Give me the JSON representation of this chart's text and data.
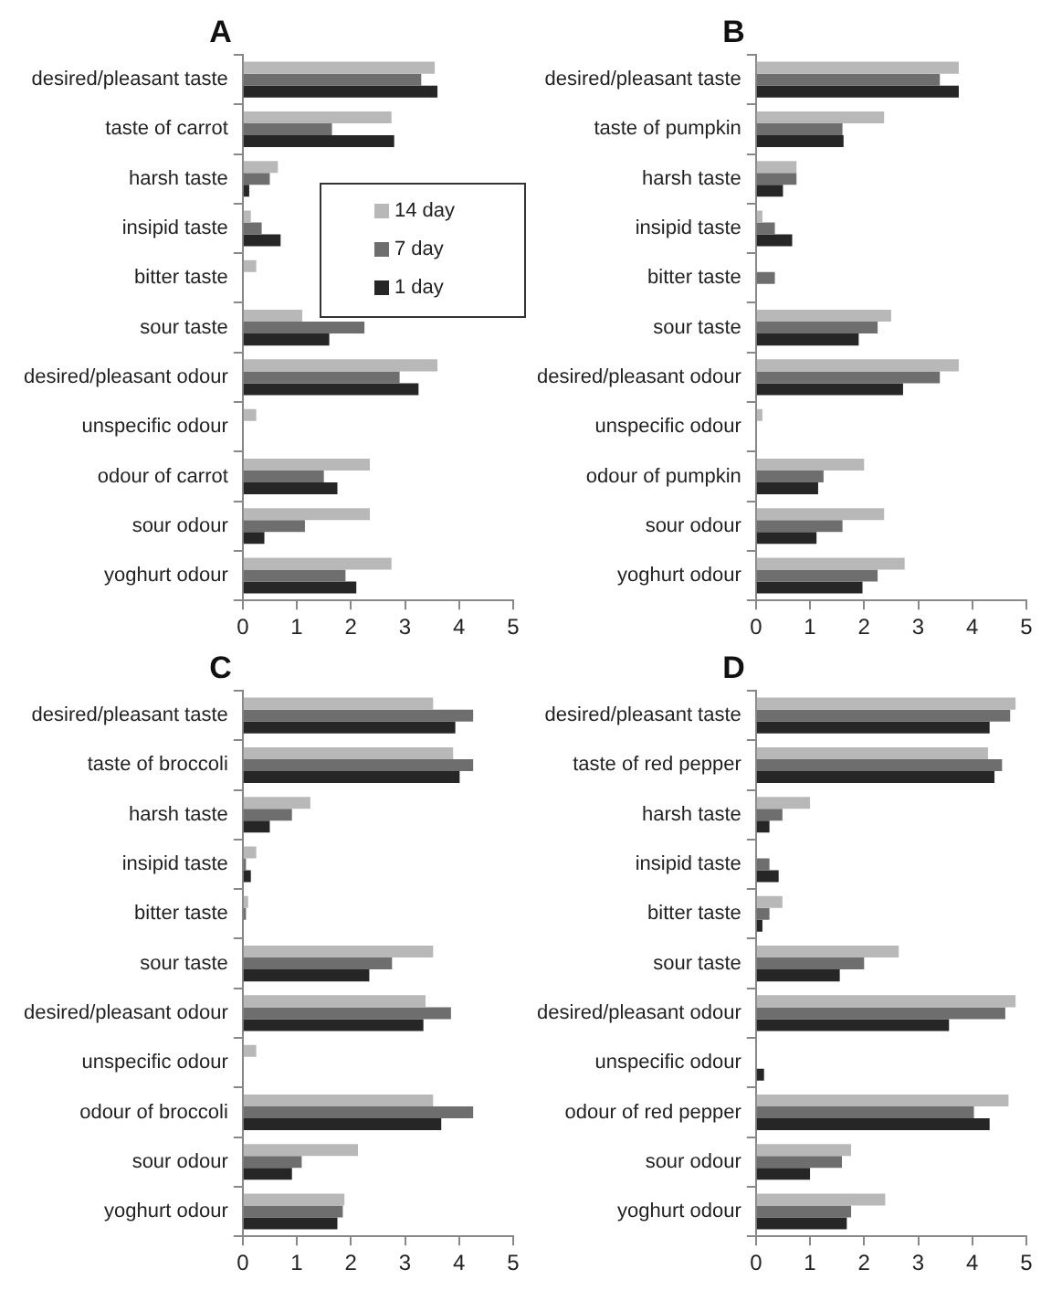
{
  "chart_data": [
    {
      "type": "bar",
      "title": "A",
      "orientation": "horizontal",
      "legend": "top right",
      "grid": false,
      "xlim": [
        0,
        5
      ],
      "xticks": [
        0,
        1,
        2,
        3,
        4,
        5
      ],
      "categories": [
        "desired/pleasant taste",
        "taste of carrot",
        "harsh taste",
        "insipid taste",
        "bitter taste",
        "sour taste",
        "desired/pleasant odour",
        "unspecific odour",
        "odour of carrot",
        "sour odour",
        "yoghurt odour"
      ],
      "series": [
        {
          "name": "14 day",
          "color": "#b8b8b8",
          "values": [
            3.55,
            2.75,
            0.65,
            0.15,
            0.25,
            1.1,
            3.6,
            0.25,
            2.35,
            2.35,
            2.75
          ]
        },
        {
          "name": "7 day",
          "color": "#6e6e6e",
          "values": [
            3.3,
            1.65,
            0.5,
            0.35,
            0,
            2.25,
            2.9,
            0,
            1.5,
            1.15,
            1.9
          ]
        },
        {
          "name": "1 day",
          "color": "#262626",
          "values": [
            3.6,
            2.8,
            0.12,
            0.7,
            0,
            1.6,
            3.25,
            0,
            1.75,
            0.4,
            2.1
          ]
        }
      ]
    },
    {
      "type": "bar",
      "title": "B",
      "orientation": "horizontal",
      "grid": false,
      "xlim": [
        0,
        5
      ],
      "xticks": [
        0,
        1,
        2,
        3,
        4,
        5
      ],
      "categories": [
        "desired/pleasant taste",
        "taste of pumpkin",
        "harsh taste",
        "insipid taste",
        "bitter taste",
        "sour taste",
        "desired/pleasant odour",
        "unspecific odour",
        "odour of pumpkin",
        "sour odour",
        "yoghurt odour"
      ],
      "series": [
        {
          "color": "#b8b8b8",
          "values": [
            3.75,
            2.37,
            0.75,
            0.12,
            0,
            2.5,
            3.75,
            0.12,
            2.0,
            2.37,
            2.75
          ]
        },
        {
          "color": "#6e6e6e",
          "values": [
            3.4,
            1.6,
            0.75,
            0.35,
            0.35,
            2.25,
            3.4,
            0,
            1.25,
            1.6,
            2.25
          ]
        },
        {
          "color": "#262626",
          "values": [
            3.75,
            1.62,
            0.5,
            0.67,
            0,
            1.9,
            2.72,
            0,
            1.15,
            1.12,
            1.97
          ]
        }
      ]
    },
    {
      "type": "bar",
      "title": "C",
      "orientation": "horizontal",
      "grid": false,
      "xlim": [
        0,
        5
      ],
      "xticks": [
        0,
        1,
        2,
        3,
        4,
        5
      ],
      "categories": [
        "desired/pleasant taste",
        "taste of broccoli",
        "harsh taste",
        "insipid taste",
        "bitter taste",
        "sour taste",
        "desired/pleasant odour",
        "unspecific odour",
        "odour of broccoli",
        "sour odour",
        "yoghurt odour"
      ],
      "series": [
        {
          "color": "#b8b8b8",
          "values": [
            3.52,
            3.89,
            1.25,
            0.25,
            0.1,
            3.52,
            3.38,
            0.25,
            3.52,
            2.13,
            1.88
          ]
        },
        {
          "color": "#6e6e6e",
          "values": [
            4.26,
            4.26,
            0.91,
            0.06,
            0.06,
            2.76,
            3.85,
            0,
            4.26,
            1.09,
            1.85
          ]
        },
        {
          "color": "#262626",
          "values": [
            3.93,
            4.01,
            0.5,
            0.15,
            0,
            2.34,
            3.34,
            0,
            3.67,
            0.91,
            1.75
          ]
        }
      ]
    },
    {
      "type": "bar",
      "title": "D",
      "orientation": "horizontal",
      "grid": false,
      "xlim": [
        0,
        5
      ],
      "xticks": [
        0,
        1,
        2,
        3,
        4,
        5
      ],
      "categories": [
        "desired/pleasant taste",
        "taste of red pepper",
        "harsh taste",
        "insipid taste",
        "bitter taste",
        "sour taste",
        "desired/pleasant odour",
        "unspecific odour",
        "odour of red pepper",
        "sour odour",
        "yoghurt odour"
      ],
      "series": [
        {
          "color": "#b8b8b8",
          "values": [
            4.8,
            4.29,
            1.0,
            0,
            0.49,
            2.64,
            4.8,
            0,
            4.67,
            1.76,
            2.39
          ]
        },
        {
          "color": "#6e6e6e",
          "values": [
            4.7,
            4.55,
            0.49,
            0.25,
            0.25,
            2.0,
            4.61,
            0,
            4.03,
            1.59,
            1.76
          ]
        },
        {
          "color": "#262626",
          "values": [
            4.32,
            4.41,
            0.25,
            0.42,
            0.12,
            1.55,
            3.57,
            0.15,
            4.32,
            1.0,
            1.68
          ]
        }
      ]
    }
  ]
}
